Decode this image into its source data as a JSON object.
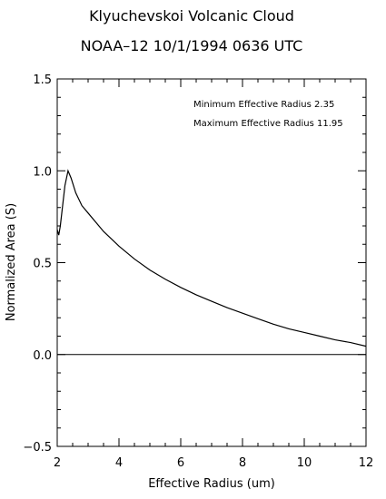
{
  "chart_data": {
    "type": "line",
    "title": "Klyuchevskoi Volcanic Cloud",
    "subtitle": "NOAA–12  10/1/1994  0636 UTC",
    "xlabel": "Effective Radius (um)",
    "ylabel": "Normalized Area (S)",
    "xlim": [
      2,
      12
    ],
    "ylim": [
      -0.5,
      1.5
    ],
    "x_ticks": [
      "2",
      "4",
      "6",
      "8",
      "10",
      "12"
    ],
    "y_ticks": [
      "−0.5",
      "0.0",
      "0.5",
      "1.0",
      "1.5"
    ],
    "grid": false,
    "annotations": [
      "Minimum Effective Radius  2.35",
      "Maximum Effective Radius 11.95"
    ],
    "series": [
      {
        "x": [
          2.0,
          2.05,
          2.1,
          2.25,
          2.35,
          2.45,
          2.6,
          2.8,
          3.0,
          3.5,
          4.0,
          4.5,
          5.0,
          5.5,
          6.0,
          6.5,
          7.0,
          7.5,
          8.0,
          8.5,
          9.0,
          9.5,
          10.0,
          10.5,
          11.0,
          11.5,
          12.0
        ],
        "y": [
          0.68,
          0.65,
          0.7,
          0.92,
          1.0,
          0.96,
          0.88,
          0.81,
          0.77,
          0.67,
          0.59,
          0.52,
          0.46,
          0.41,
          0.365,
          0.325,
          0.29,
          0.255,
          0.225,
          0.195,
          0.165,
          0.14,
          0.12,
          0.1,
          0.08,
          0.065,
          0.045
        ]
      }
    ],
    "reference_lines": [
      {
        "orientation": "horizontal",
        "y": 0
      }
    ]
  }
}
